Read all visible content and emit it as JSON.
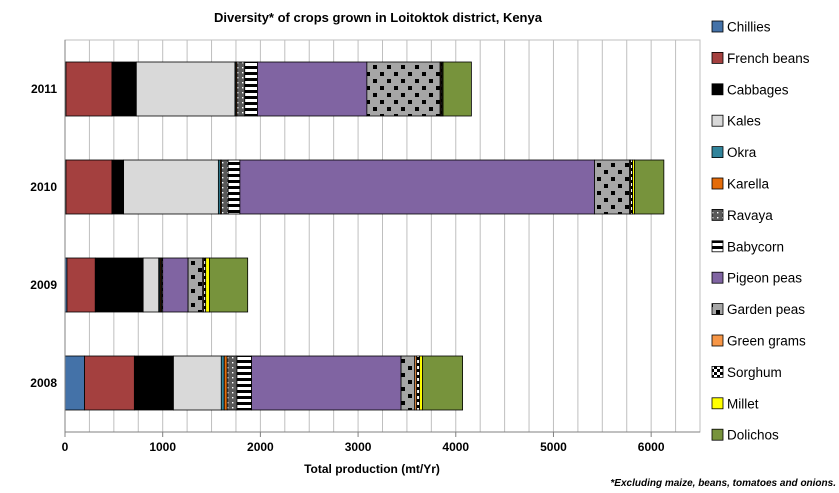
{
  "chart_data": {
    "type": "bar",
    "orientation": "horizontal",
    "stacked": true,
    "title": "Diversity* of crops grown in Loitoktok district, Kenya",
    "xlabel": "Total production (mt/Yr)",
    "ylabel": "",
    "xlim": [
      0,
      6500
    ],
    "xticks": [
      0,
      1000,
      2000,
      3000,
      4000,
      5000,
      6000
    ],
    "xtick_labels": [
      "0",
      "1000",
      "2000",
      "3000",
      "4000",
      "5000",
      "6000"
    ],
    "grid": "vertical",
    "legend_position": "right",
    "footnote": "*Excluding maize, beans, tomatoes and onions.",
    "categories": [
      "2011",
      "2010",
      "2009",
      "2008"
    ],
    "series": [
      {
        "name": "Chillies",
        "color": "#4472A8",
        "pattern": "solid",
        "values": [
          10,
          10,
          20,
          200
        ]
      },
      {
        "name": "French beans",
        "color": "#A4403F",
        "pattern": "solid",
        "values": [
          470,
          470,
          290,
          510
        ]
      },
      {
        "name": "Cabbages",
        "color": "#000000",
        "pattern": "solid",
        "values": [
          250,
          120,
          490,
          400
        ]
      },
      {
        "name": "Kales",
        "color": "#D9D9D9",
        "pattern": "solid",
        "values": [
          1010,
          970,
          160,
          490
        ]
      },
      {
        "name": "Okra",
        "color": "#31849B",
        "pattern": "solid",
        "values": [
          10,
          20,
          10,
          30
        ]
      },
      {
        "name": "Karella",
        "color": "#E46C0A",
        "pattern": "solid",
        "values": [
          10,
          10,
          10,
          30
        ]
      },
      {
        "name": "Ravaya",
        "color": "#595959",
        "pattern": "dotted",
        "values": [
          80,
          70,
          10,
          100
        ]
      },
      {
        "name": "Babycorn",
        "color": "#FFFFFF",
        "pattern": "hstripe",
        "values": [
          130,
          120,
          10,
          150
        ]
      },
      {
        "name": "Pigeon peas",
        "color": "#8064A2",
        "pattern": "solid",
        "values": [
          1120,
          3630,
          260,
          1530
        ]
      },
      {
        "name": "Garden peas",
        "color": "#A6A6A6",
        "pattern": "squares",
        "values": [
          750,
          360,
          150,
          140
        ]
      },
      {
        "name": "Green grams",
        "color": "#F79646",
        "pattern": "solid",
        "values": [
          10,
          10,
          10,
          20
        ]
      },
      {
        "name": "Sorghum",
        "color": "#FFFFFF",
        "pattern": "checker",
        "values": [
          10,
          20,
          20,
          30
        ]
      },
      {
        "name": "Millet",
        "color": "#FFFF00",
        "pattern": "solid",
        "values": [
          10,
          20,
          40,
          30
        ]
      },
      {
        "name": "Dolichos",
        "color": "#77933C",
        "pattern": "solid",
        "values": [
          290,
          300,
          390,
          410
        ]
      }
    ]
  }
}
